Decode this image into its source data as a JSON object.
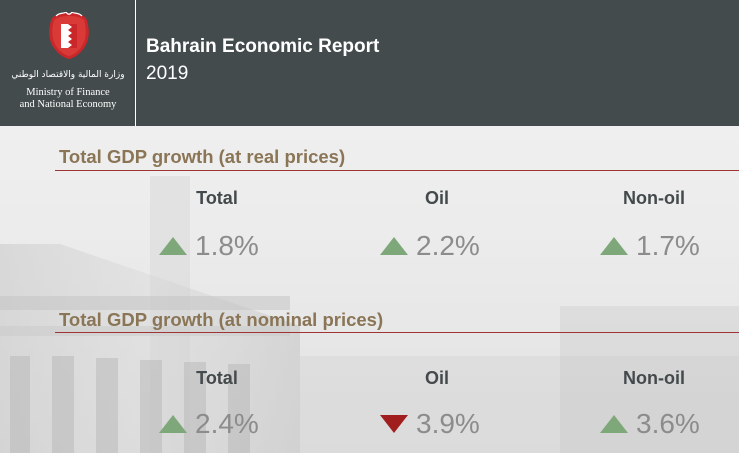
{
  "header": {
    "ministry_arabic": "وزارة المالية والاقتصاد الوطني",
    "ministry_english": [
      "Ministry of Finance",
      "and National Economy"
    ],
    "report_title": "Bahrain Economic Report",
    "report_year": "2019"
  },
  "colors": {
    "header_bg": "#434b4d",
    "section_title": "#8a7556",
    "divider": "#9e3434",
    "increase": "#7fa87a",
    "decrease": "#a11e1e",
    "value_text": "#8c8c8c"
  },
  "sections": [
    {
      "title": "Total GDP growth (at real prices)",
      "items": [
        {
          "label": "Total",
          "value": "1.8%",
          "direction": "up",
          "icon": "triangle-up-icon"
        },
        {
          "label": "Oil",
          "value": "2.2%",
          "direction": "up",
          "icon": "triangle-up-icon"
        },
        {
          "label": "Non-oil",
          "value": "1.7%",
          "direction": "up",
          "icon": "triangle-up-icon"
        }
      ]
    },
    {
      "title": "Total GDP growth (at nominal prices)",
      "items": [
        {
          "label": "Total",
          "value": "2.4%",
          "direction": "up",
          "icon": "triangle-up-icon"
        },
        {
          "label": "Oil",
          "value": "3.9%",
          "direction": "down",
          "icon": "triangle-down-icon"
        },
        {
          "label": "Non-oil",
          "value": "3.6%",
          "direction": "up",
          "icon": "triangle-up-icon"
        }
      ]
    }
  ]
}
